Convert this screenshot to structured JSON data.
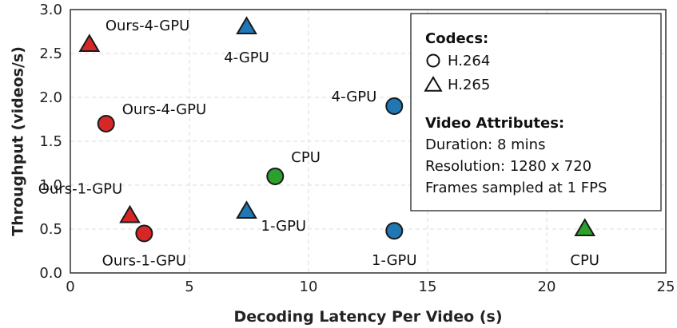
{
  "chart_data": {
    "type": "scatter",
    "title": "",
    "xlabel": "Decoding Latency Per Video (s)",
    "ylabel": "Throughput (videos/s)",
    "xlim": [
      0,
      25
    ],
    "ylim": [
      0.0,
      3.0
    ],
    "xticks": [
      "0",
      "5",
      "10",
      "15",
      "20",
      "25"
    ],
    "yticks": [
      "0.0",
      "0.5",
      "1.0",
      "1.5",
      "2.0",
      "2.5",
      "3.0"
    ],
    "grid": true,
    "legend_position": "top-right",
    "colors": {
      "ours": "#d62728",
      "gpu": "#1f77b4",
      "cpu": "#2ca02c"
    },
    "points": [
      {
        "label": "Ours-4-GPU",
        "codec": "H.265",
        "x": 0.8,
        "y": 2.6,
        "color": "#d62728"
      },
      {
        "label": "4-GPU",
        "codec": "H.265",
        "x": 7.4,
        "y": 2.8,
        "color": "#1f77b4"
      },
      {
        "label": "Ours-4-GPU",
        "codec": "H.264",
        "x": 1.5,
        "y": 1.7,
        "color": "#d62728"
      },
      {
        "label": "4-GPU",
        "codec": "H.264",
        "x": 13.6,
        "y": 1.9,
        "color": "#1f77b4"
      },
      {
        "label": "CPU",
        "codec": "H.264",
        "x": 8.6,
        "y": 1.1,
        "color": "#2ca02c"
      },
      {
        "label": "Ours-1-GPU",
        "codec": "H.265",
        "x": 2.5,
        "y": 0.65,
        "color": "#d62728"
      },
      {
        "label": "Ours-1-GPU",
        "codec": "H.264",
        "x": 3.1,
        "y": 0.45,
        "color": "#d62728"
      },
      {
        "label": "1-GPU",
        "codec": "H.265",
        "x": 7.4,
        "y": 0.7,
        "color": "#1f77b4"
      },
      {
        "label": "1-GPU",
        "codec": "H.264",
        "x": 13.6,
        "y": 0.48,
        "color": "#1f77b4"
      },
      {
        "label": "CPU",
        "codec": "H.265",
        "x": 21.6,
        "y": 0.5,
        "color": "#2ca02c"
      }
    ],
    "legend": {
      "codecs_title": "Codecs:",
      "codecs": [
        {
          "marker": "circle",
          "label": "H.264"
        },
        {
          "marker": "triangle",
          "label": "H.265"
        }
      ],
      "attributes_title": "Video Attributes:",
      "attributes": [
        "Duration: 8 mins",
        "Resolution: 1280 x 720",
        "Frames sampled at 1 FPS"
      ]
    }
  }
}
